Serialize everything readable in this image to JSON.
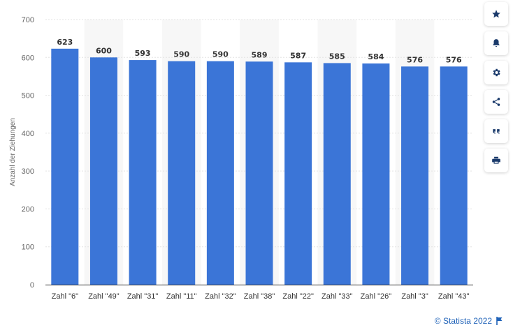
{
  "chart_data": {
    "type": "bar",
    "ylabel": "Anzahl der Ziehungen",
    "categories": [
      "Zahl \"6\"",
      "Zahl \"49\"",
      "Zahl \"31\"",
      "Zahl \"11\"",
      "Zahl \"32\"",
      "Zahl \"38\"",
      "Zahl \"22\"",
      "Zahl \"33\"",
      "Zahl \"26\"",
      "Zahl \"3\"",
      "Zahl \"43\""
    ],
    "values": [
      623,
      600,
      593,
      590,
      590,
      589,
      587,
      585,
      584,
      576,
      576
    ],
    "ylim": [
      0,
      700
    ],
    "yticks": [
      0,
      100,
      200,
      300,
      400,
      500,
      600,
      700
    ],
    "bar_color": "#3b75d7",
    "grid": true,
    "data_labels": true
  },
  "sidebar": {
    "buttons": [
      {
        "icon": "star-icon",
        "name": "favorite-button"
      },
      {
        "icon": "bell-icon",
        "name": "notification-button"
      },
      {
        "icon": "gear-icon",
        "name": "settings-button"
      },
      {
        "icon": "share-icon",
        "name": "share-button"
      },
      {
        "icon": "quote-icon",
        "name": "cite-button"
      },
      {
        "icon": "print-icon",
        "name": "print-button"
      }
    ]
  },
  "credit": {
    "text": "© Statista 2022",
    "icon": "flag-icon",
    "color": "#1f62b8"
  }
}
